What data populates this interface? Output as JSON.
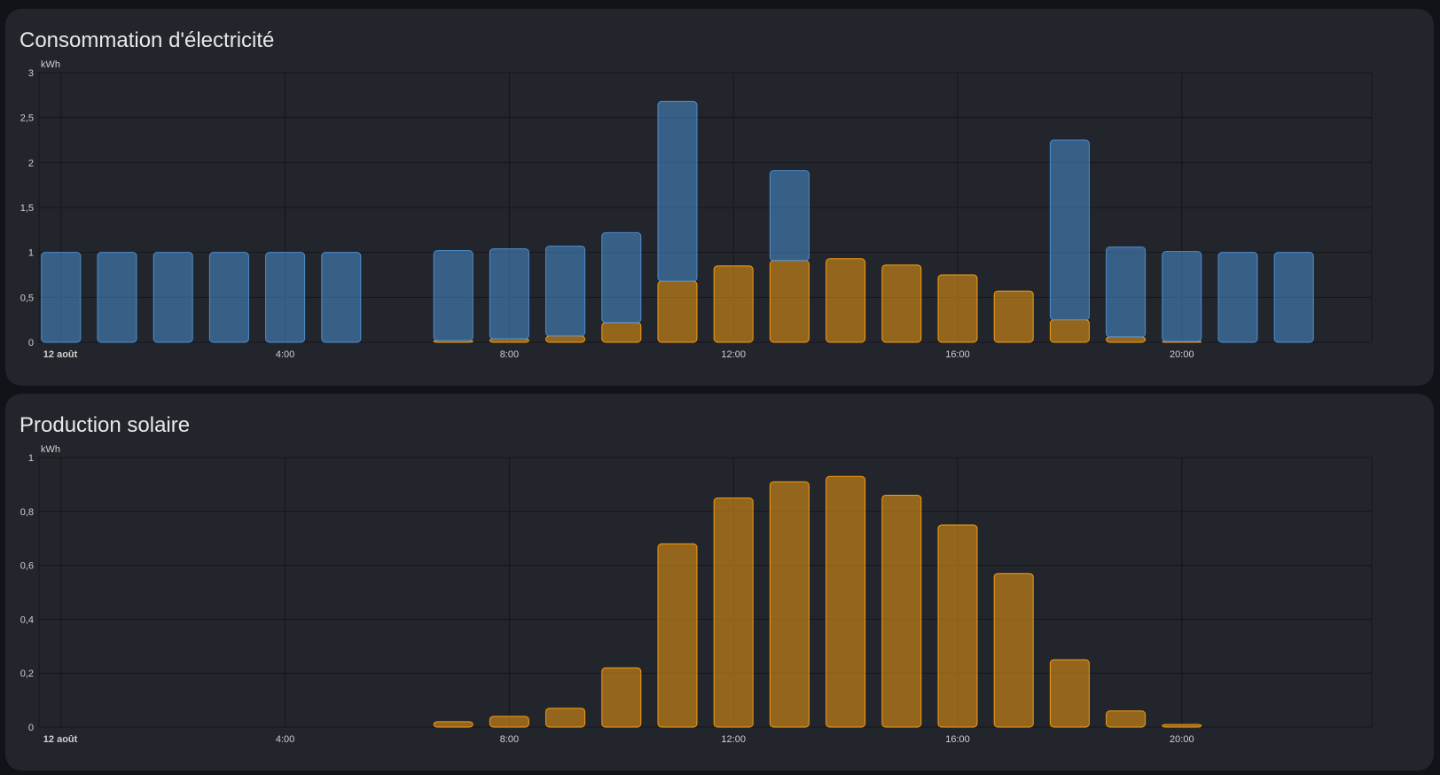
{
  "cards": [
    {
      "title": "Consommation d'électricité",
      "unit": "kWh",
      "yticks": [
        "0",
        "0,5",
        "1",
        "1,5",
        "2",
        "2,5",
        "3"
      ],
      "xticks": [
        {
          "hour": 0,
          "label": "12 août",
          "bold": true
        },
        {
          "hour": 4,
          "label": "4:00",
          "bold": false
        },
        {
          "hour": 8,
          "label": "8:00",
          "bold": false
        },
        {
          "hour": 12,
          "label": "12:00",
          "bold": false
        },
        {
          "hour": 16,
          "label": "16:00",
          "bold": false
        },
        {
          "hour": 20,
          "label": "20:00",
          "bold": false
        }
      ]
    },
    {
      "title": "Production solaire",
      "unit": "kWh",
      "yticks": [
        "0",
        "0,2",
        "0,4",
        "0,6",
        "0,8",
        "1"
      ],
      "xticks": [
        {
          "hour": 0,
          "label": "12 août",
          "bold": true
        },
        {
          "hour": 4,
          "label": "4:00",
          "bold": false
        },
        {
          "hour": 8,
          "label": "8:00",
          "bold": false
        },
        {
          "hour": 12,
          "label": "12:00",
          "bold": false
        },
        {
          "hour": 16,
          "label": "16:00",
          "bold": false
        },
        {
          "hour": 20,
          "label": "20:00",
          "bold": false
        }
      ]
    }
  ],
  "chart_data": [
    {
      "type": "bar",
      "stacked": true,
      "title": "Consommation d'électricité",
      "ylabel": "kWh",
      "ylim": [
        0,
        3
      ],
      "grid": true,
      "x_hours": [
        0,
        1,
        2,
        3,
        4,
        5,
        6,
        7,
        8,
        9,
        10,
        11,
        12,
        13,
        14,
        15,
        16,
        17,
        18,
        19,
        20,
        21,
        22,
        23
      ],
      "series": [
        {
          "color": "#f39c12",
          "values": [
            0,
            0,
            0,
            0,
            0,
            0,
            0,
            0.02,
            0.04,
            0.07,
            0.22,
            0.68,
            0.85,
            0.91,
            0.93,
            0.86,
            0.75,
            0.57,
            0.25,
            0.06,
            0.01,
            0,
            0,
            0
          ]
        },
        {
          "color": "#4b8fd1",
          "values": [
            1.0,
            1.0,
            1.0,
            1.0,
            1.0,
            1.0,
            0,
            1.0,
            1.0,
            1.0,
            1.0,
            2.0,
            0,
            1.0,
            0,
            0,
            0,
            0,
            2.0,
            1.0,
            1.0,
            1.0,
            1.0,
            0
          ]
        }
      ]
    },
    {
      "type": "bar",
      "title": "Production solaire",
      "ylabel": "kWh",
      "ylim": [
        0,
        1
      ],
      "grid": true,
      "x_hours": [
        0,
        1,
        2,
        3,
        4,
        5,
        6,
        7,
        8,
        9,
        10,
        11,
        12,
        13,
        14,
        15,
        16,
        17,
        18,
        19,
        20,
        21,
        22,
        23
      ],
      "series": [
        {
          "color": "#f39c12",
          "values": [
            0,
            0,
            0,
            0,
            0,
            0,
            0,
            0.02,
            0.04,
            0.07,
            0.22,
            0.68,
            0.85,
            0.91,
            0.93,
            0.86,
            0.75,
            0.57,
            0.25,
            0.06,
            0.01,
            0,
            0,
            0
          ]
        }
      ]
    }
  ]
}
